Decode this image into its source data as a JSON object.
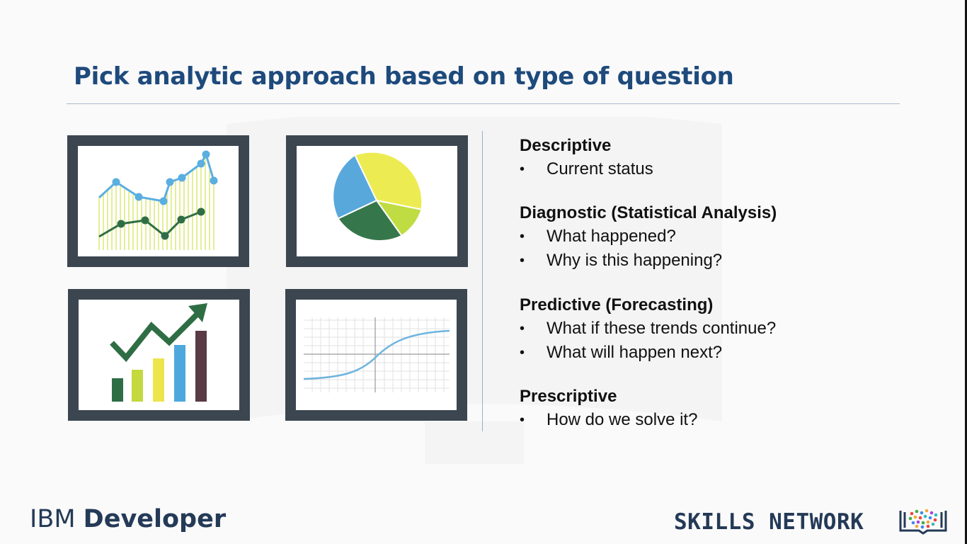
{
  "slide": {
    "title": "Pick analytic approach based on type of question",
    "sections": [
      {
        "heading": "Descriptive",
        "bullets": [
          "Current status"
        ]
      },
      {
        "heading": "Diagnostic (Statistical Analysis)",
        "bullets": [
          "What happened?",
          "Why is this happening?"
        ]
      },
      {
        "heading": "Predictive (Forecasting)",
        "bullets": [
          "What if these trends continue?",
          "What will happen next?"
        ]
      },
      {
        "heading": "Prescriptive",
        "bullets": [
          "How do we solve it?"
        ]
      }
    ],
    "bullet_char": "•"
  },
  "footer": {
    "brand_light": "IBM ",
    "brand_bold": "Developer",
    "right": "SKILLS NETWORK"
  },
  "illustrations": {
    "icons": [
      "line-chart-icon",
      "pie-chart-icon",
      "bar-growth-chart-icon",
      "s-curve-graph-icon"
    ],
    "colors": {
      "frame": "#3c4650",
      "blue": "#5aaee0",
      "green": "#2f6e45",
      "yellow_green": "#cfe35a",
      "yellow": "#ecec52",
      "title": "#1e4a7c"
    }
  }
}
